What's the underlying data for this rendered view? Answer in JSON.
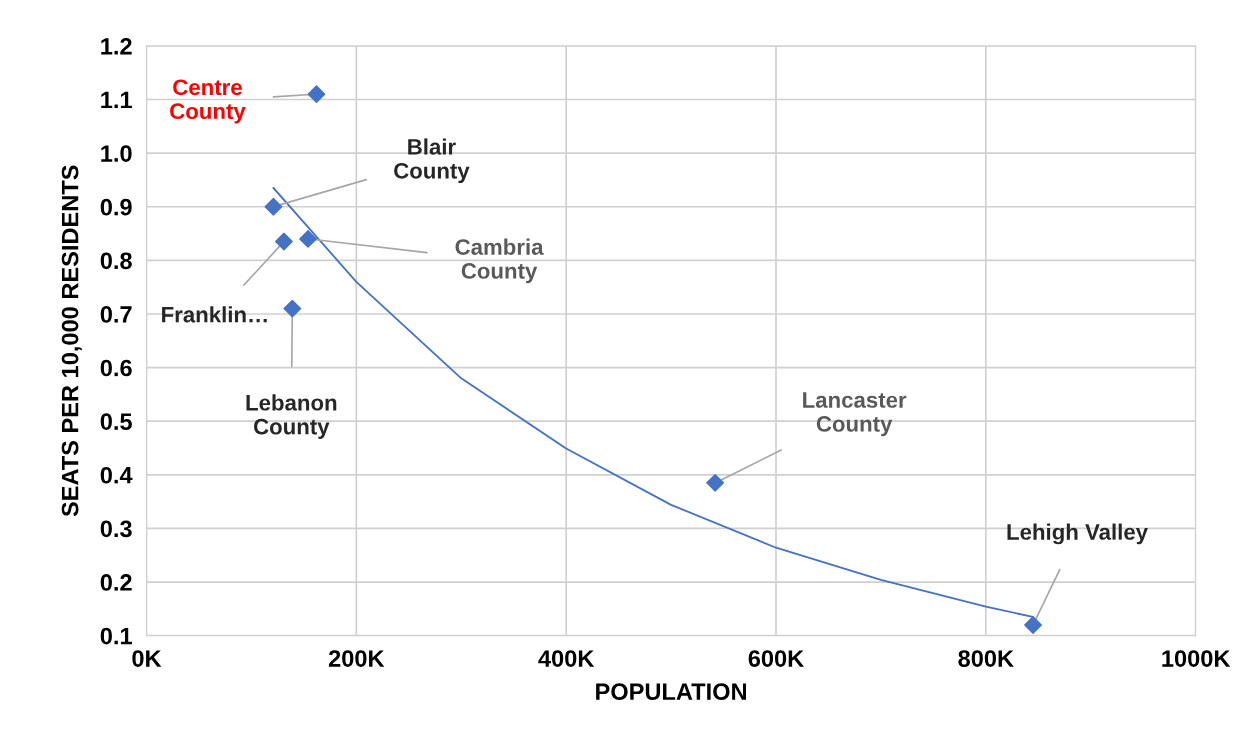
{
  "chart_data": {
    "type": "scatter",
    "xlabel": "POPULATION",
    "ylabel": "SEATS PER 10,000 RESIDENTS",
    "xlim": [
      0,
      1000
    ],
    "ylim": [
      0.1,
      1.2
    ],
    "xticks": [
      {
        "value": 0,
        "label": "0K"
      },
      {
        "value": 200,
        "label": "200K"
      },
      {
        "value": 400,
        "label": "400K"
      },
      {
        "value": 600,
        "label": "600K"
      },
      {
        "value": 800,
        "label": "800K"
      },
      {
        "value": 1000,
        "label": "1000K"
      }
    ],
    "yticks": [
      {
        "value": 0.1,
        "label": "0.1"
      },
      {
        "value": 0.2,
        "label": "0.2"
      },
      {
        "value": 0.3,
        "label": "0.3"
      },
      {
        "value": 0.4,
        "label": "0.4"
      },
      {
        "value": 0.5,
        "label": "0.5"
      },
      {
        "value": 0.6,
        "label": "0.6"
      },
      {
        "value": 0.7,
        "label": "0.7"
      },
      {
        "value": 0.8,
        "label": "0.8"
      },
      {
        "value": 0.9,
        "label": "0.9"
      },
      {
        "value": 1.0,
        "label": "1.0"
      },
      {
        "value": 1.1,
        "label": "1.1"
      },
      {
        "value": 1.2,
        "label": "1.2"
      }
    ],
    "grid": true,
    "series": [
      {
        "marker": "diamond",
        "color": "#4472c4",
        "x": [
          162,
          121,
          131,
          154,
          139,
          542,
          845
        ],
        "values": [
          1.11,
          0.9,
          0.835,
          0.84,
          0.71,
          0.385,
          0.12
        ]
      },
      {
        "type": "line",
        "color": "#4472c4",
        "x": [
          121,
          200,
          300,
          400,
          500,
          600,
          700,
          800,
          845
        ],
        "values": [
          0.935,
          0.76,
          0.58,
          0.449,
          0.344,
          0.264,
          0.204,
          0.154,
          0.135
        ]
      }
    ],
    "annotations": [
      {
        "text": "Centre\nCounty",
        "x": 162,
        "y": 1.11
      },
      {
        "text": "Blair\nCounty",
        "x": 121,
        "y": 0.9
      },
      {
        "text": "Franklin…",
        "x": 131,
        "y": 0.835
      },
      {
        "text": "Cambria\nCounty",
        "x": 154,
        "y": 0.84
      },
      {
        "text": "Lebanon\nCounty",
        "x": 139,
        "y": 0.71
      },
      {
        "text": "Lancaster\nCounty",
        "x": 542,
        "y": 0.385
      },
      {
        "text": "Lehigh Valley",
        "x": 845,
        "y": 0.12
      }
    ]
  }
}
